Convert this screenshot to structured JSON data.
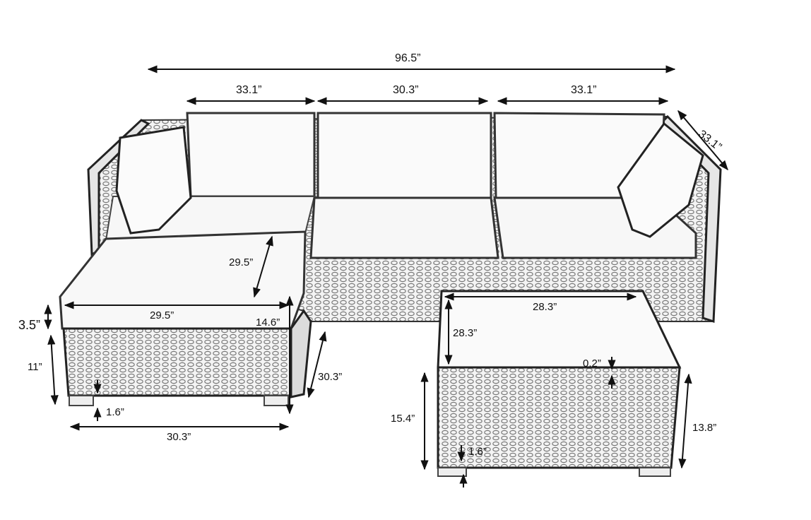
{
  "dimensions": {
    "overall_width": "96.5”",
    "left_seat_width": "33.1”",
    "center_seat_width": "30.3”",
    "right_seat_width": "33.1”",
    "depth_right": "33.1”",
    "ottoman_depth": "29.5”",
    "ottoman_width_top": "29.5”",
    "ottoman_height": "14.6”",
    "cushion_thickness": "3.5”",
    "base_height": "11”",
    "leg_height_left": "1.6”",
    "ottoman_width_bottom": "30.3”",
    "ottoman_depth_side": "30.3”",
    "table_width": "28.3”",
    "table_depth": "28.3”",
    "glass_thickness": "0.2”",
    "table_height_front": "15.4”",
    "table_leg_height": "1.6”",
    "table_height_side": "13.8”"
  }
}
